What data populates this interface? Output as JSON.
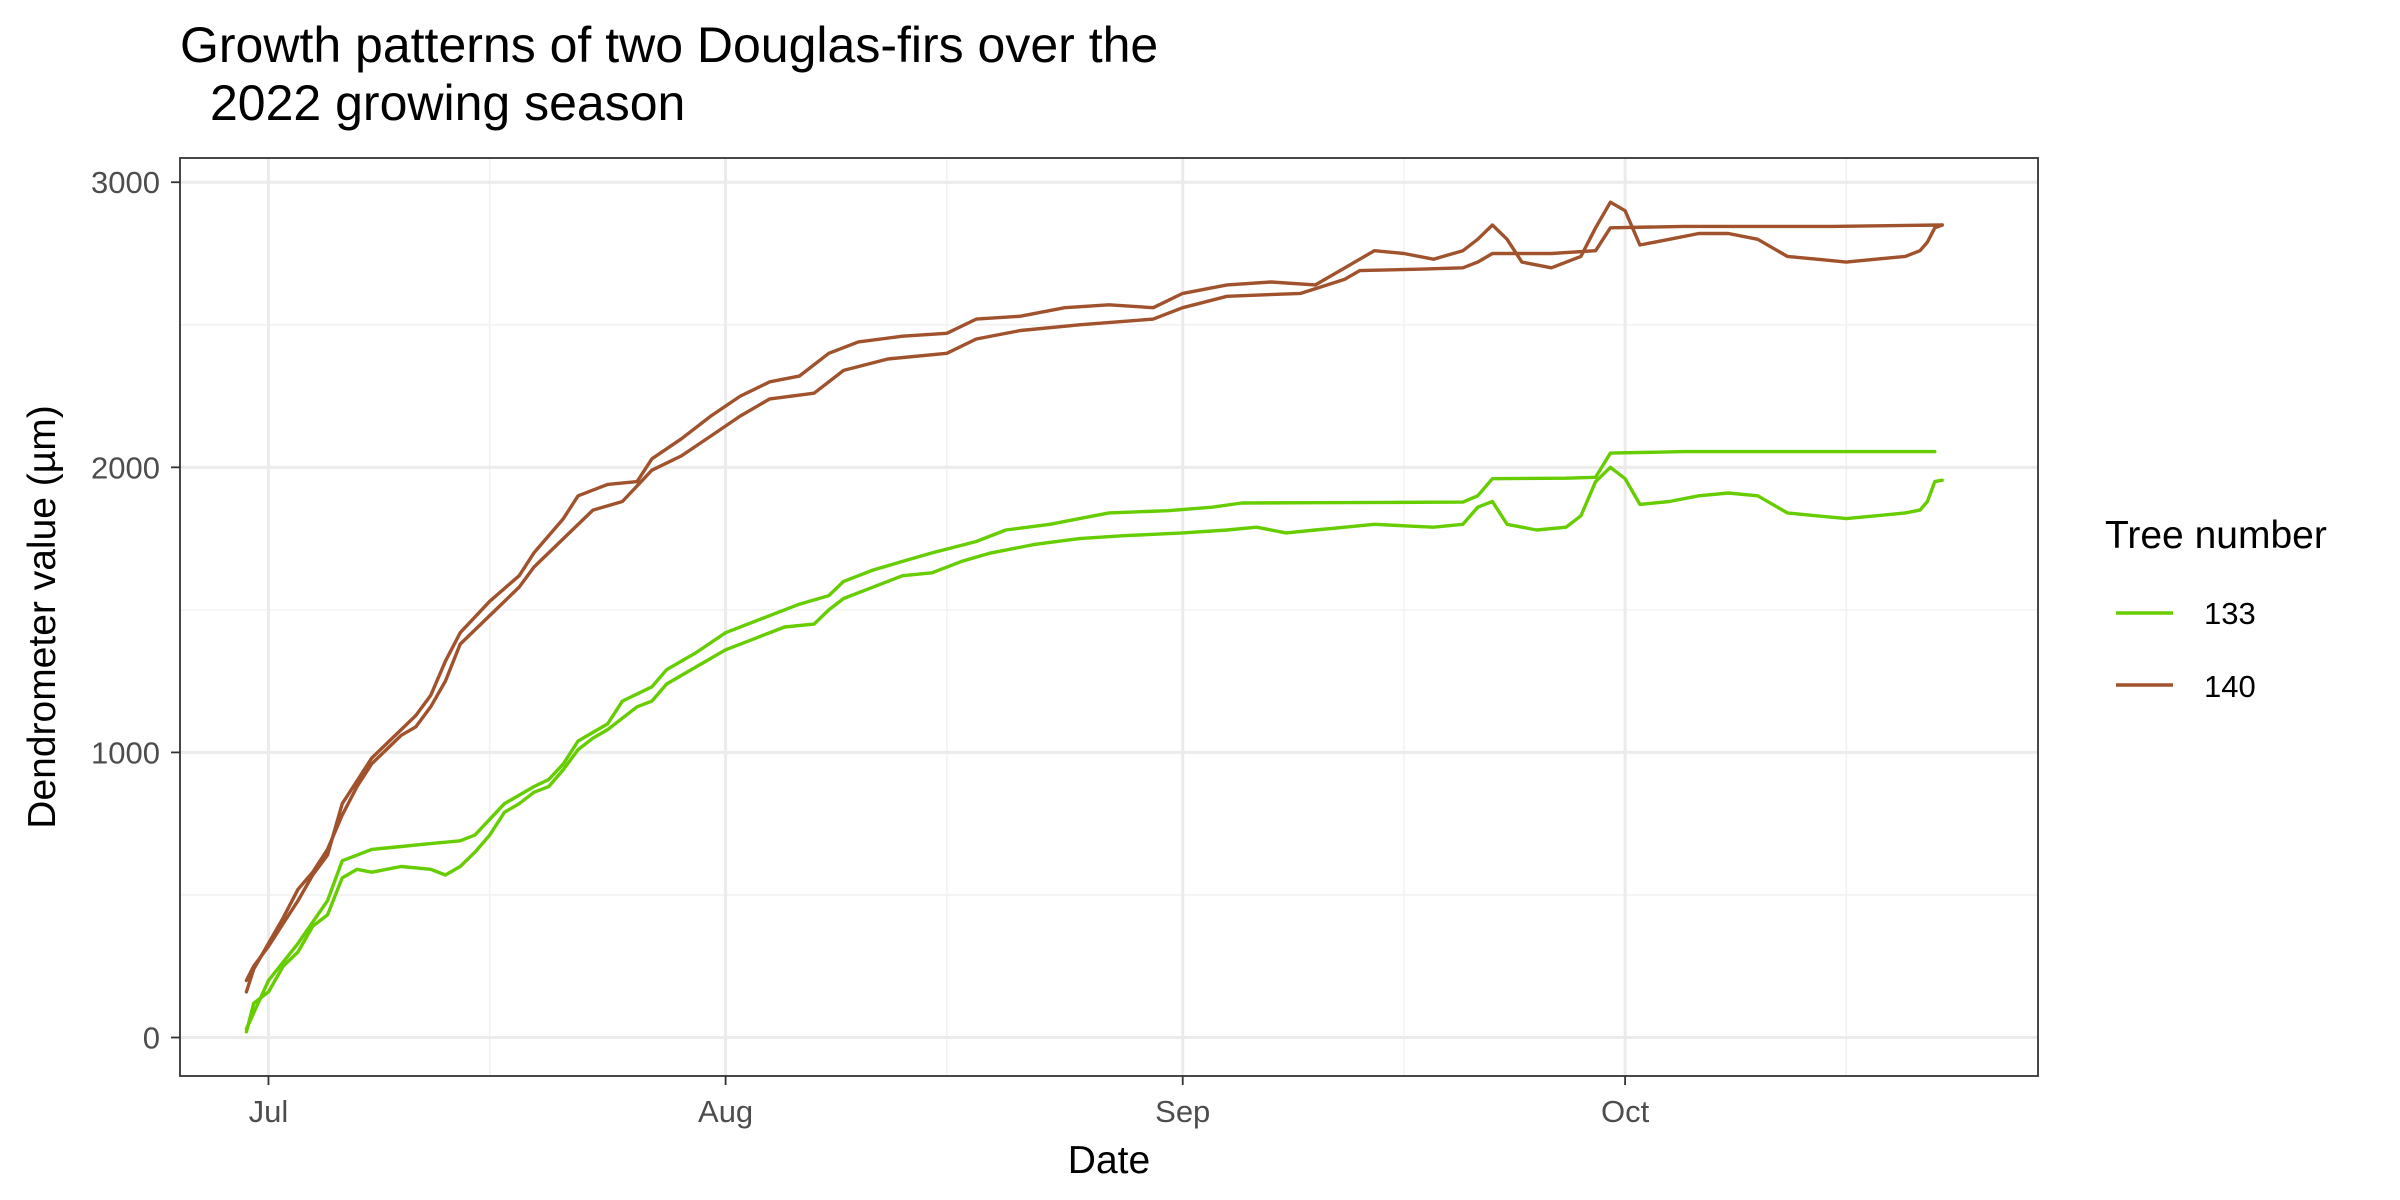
{
  "chart_data": {
    "type": "line",
    "title_lines": [
      "Growth patterns of two Douglas-firs over the",
      "2022 growing season"
    ],
    "xlabel": "Date",
    "ylabel": "Dendrometer value (µm)",
    "x_ticks": [
      {
        "date": "2022-07-01",
        "label": "Jul"
      },
      {
        "date": "2022-08-01",
        "label": "Aug"
      },
      {
        "date": "2022-09-01",
        "label": "Sep"
      },
      {
        "date": "2022-10-01",
        "label": "Oct"
      }
    ],
    "x_minor_ticks": [
      "2022-07-16",
      "2022-08-16",
      "2022-09-16",
      "2022-10-16"
    ],
    "xlim": [
      "2022-06-25",
      "2022-10-29"
    ],
    "y_ticks": [
      0,
      1000,
      2000,
      3000
    ],
    "y_minor_ticks": [
      500,
      1500,
      2500
    ],
    "ylim": [
      -135,
      3085
    ],
    "grid": true,
    "legend": {
      "title": "Tree number",
      "position": "right"
    },
    "series": [
      {
        "name": "133",
        "color": "#66CD00",
        "envelope": [
          [
            "2022-06-29T12:00",
            30
          ],
          [
            "2022-07-01",
            200
          ],
          [
            "2022-07-03",
            330
          ],
          [
            "2022-07-05",
            480
          ],
          [
            "2022-07-06",
            620
          ],
          [
            "2022-07-08",
            660
          ],
          [
            "2022-07-10",
            670
          ],
          [
            "2022-07-12",
            680
          ],
          [
            "2022-07-14",
            690
          ],
          [
            "2022-07-15",
            710
          ],
          [
            "2022-07-17",
            820
          ],
          [
            "2022-07-19",
            880
          ],
          [
            "2022-07-20",
            905
          ],
          [
            "2022-07-21",
            960
          ],
          [
            "2022-07-22",
            1040
          ],
          [
            "2022-07-24",
            1100
          ],
          [
            "2022-07-25",
            1180
          ],
          [
            "2022-07-27",
            1230
          ],
          [
            "2022-07-28",
            1290
          ],
          [
            "2022-07-30",
            1350
          ],
          [
            "2022-08-01",
            1420
          ],
          [
            "2022-08-04",
            1480
          ],
          [
            "2022-08-06",
            1520
          ],
          [
            "2022-08-08",
            1550
          ],
          [
            "2022-08-09",
            1600
          ],
          [
            "2022-08-11",
            1640
          ],
          [
            "2022-08-13",
            1670
          ],
          [
            "2022-08-15",
            1700
          ],
          [
            "2022-08-18",
            1740
          ],
          [
            "2022-08-20",
            1780
          ],
          [
            "2022-08-23",
            1800
          ],
          [
            "2022-08-25",
            1820
          ],
          [
            "2022-08-27",
            1840
          ],
          [
            "2022-08-31",
            1848
          ],
          [
            "2022-09-03",
            1860
          ],
          [
            "2022-09-05",
            1875
          ],
          [
            "2022-09-10",
            1876
          ],
          [
            "2022-09-15",
            1877
          ],
          [
            "2022-09-20",
            1878
          ],
          [
            "2022-09-21",
            1900
          ],
          [
            "2022-09-22",
            1960
          ],
          [
            "2022-09-27",
            1962
          ],
          [
            "2022-09-29",
            1965
          ],
          [
            "2022-09-30",
            2050
          ],
          [
            "2022-10-05",
            2055
          ],
          [
            "2022-10-15",
            2055
          ],
          [
            "2022-10-22",
            2055
          ]
        ],
        "measured": [
          [
            "2022-06-29T12:00",
            20
          ],
          [
            "2022-06-30",
            120
          ],
          [
            "2022-07-01",
            160
          ],
          [
            "2022-07-02",
            250
          ],
          [
            "2022-07-03",
            300
          ],
          [
            "2022-07-04",
            390
          ],
          [
            "2022-07-05",
            430
          ],
          [
            "2022-07-06",
            560
          ],
          [
            "2022-07-07",
            590
          ],
          [
            "2022-07-08",
            580
          ],
          [
            "2022-07-10",
            600
          ],
          [
            "2022-07-12",
            590
          ],
          [
            "2022-07-13",
            570
          ],
          [
            "2022-07-14",
            600
          ],
          [
            "2022-07-15",
            650
          ],
          [
            "2022-07-16",
            710
          ],
          [
            "2022-07-17",
            790
          ],
          [
            "2022-07-18",
            820
          ],
          [
            "2022-07-19",
            860
          ],
          [
            "2022-07-20",
            880
          ],
          [
            "2022-07-21",
            940
          ],
          [
            "2022-07-22",
            1010
          ],
          [
            "2022-07-23",
            1050
          ],
          [
            "2022-07-24",
            1080
          ],
          [
            "2022-07-25",
            1120
          ],
          [
            "2022-07-26",
            1160
          ],
          [
            "2022-07-27",
            1180
          ],
          [
            "2022-07-28",
            1240
          ],
          [
            "2022-07-30",
            1300
          ],
          [
            "2022-08-01",
            1360
          ],
          [
            "2022-08-03",
            1400
          ],
          [
            "2022-08-05",
            1440
          ],
          [
            "2022-08-07",
            1450
          ],
          [
            "2022-08-08",
            1500
          ],
          [
            "2022-08-09",
            1540
          ],
          [
            "2022-08-11",
            1580
          ],
          [
            "2022-08-13",
            1620
          ],
          [
            "2022-08-15",
            1630
          ],
          [
            "2022-08-17",
            1670
          ],
          [
            "2022-08-19",
            1700
          ],
          [
            "2022-08-22",
            1730
          ],
          [
            "2022-08-25",
            1750
          ],
          [
            "2022-08-28",
            1760
          ],
          [
            "2022-09-01",
            1770
          ],
          [
            "2022-09-04",
            1780
          ],
          [
            "2022-09-06",
            1790
          ],
          [
            "2022-09-08",
            1770
          ],
          [
            "2022-09-10",
            1780
          ],
          [
            "2022-09-12",
            1790
          ],
          [
            "2022-09-14",
            1800
          ],
          [
            "2022-09-16",
            1795
          ],
          [
            "2022-09-18",
            1790
          ],
          [
            "2022-09-20",
            1800
          ],
          [
            "2022-09-21",
            1860
          ],
          [
            "2022-09-22",
            1880
          ],
          [
            "2022-09-23",
            1800
          ],
          [
            "2022-09-25",
            1780
          ],
          [
            "2022-09-27",
            1790
          ],
          [
            "2022-09-28",
            1830
          ],
          [
            "2022-09-29",
            1950
          ],
          [
            "2022-09-30",
            2000
          ],
          [
            "2022-10-01",
            1960
          ],
          [
            "2022-10-02",
            1870
          ],
          [
            "2022-10-04",
            1880
          ],
          [
            "2022-10-06",
            1900
          ],
          [
            "2022-10-08",
            1910
          ],
          [
            "2022-10-10",
            1900
          ],
          [
            "2022-10-12",
            1840
          ],
          [
            "2022-10-14",
            1830
          ],
          [
            "2022-10-16",
            1820
          ],
          [
            "2022-10-18",
            1830
          ],
          [
            "2022-10-20",
            1840
          ],
          [
            "2022-10-21",
            1850
          ],
          [
            "2022-10-21T12:00",
            1880
          ],
          [
            "2022-10-22",
            1950
          ],
          [
            "2022-10-22T12:00",
            1955
          ]
        ]
      },
      {
        "name": "140",
        "color": "#A0522D",
        "envelope": [
          [
            "2022-06-29T12:00",
            160
          ],
          [
            "2022-06-30",
            240
          ],
          [
            "2022-07-01",
            330
          ],
          [
            "2022-07-02",
            420
          ],
          [
            "2022-07-03",
            520
          ],
          [
            "2022-07-04",
            580
          ],
          [
            "2022-07-05",
            660
          ],
          [
            "2022-07-06",
            780
          ],
          [
            "2022-07-07",
            880
          ],
          [
            "2022-07-08",
            960
          ],
          [
            "2022-07-09",
            1010
          ],
          [
            "2022-07-10",
            1060
          ],
          [
            "2022-07-11",
            1090
          ],
          [
            "2022-07-12",
            1160
          ],
          [
            "2022-07-13",
            1250
          ],
          [
            "2022-07-14",
            1380
          ],
          [
            "2022-07-16",
            1480
          ],
          [
            "2022-07-18",
            1580
          ],
          [
            "2022-07-19",
            1650
          ],
          [
            "2022-07-21",
            1750
          ],
          [
            "2022-07-23",
            1850
          ],
          [
            "2022-07-25",
            1880
          ],
          [
            "2022-07-27",
            1990
          ],
          [
            "2022-07-29",
            2040
          ],
          [
            "2022-07-31",
            2110
          ],
          [
            "2022-08-02",
            2180
          ],
          [
            "2022-08-04",
            2240
          ],
          [
            "2022-08-07",
            2260
          ],
          [
            "2022-08-09",
            2340
          ],
          [
            "2022-08-12",
            2380
          ],
          [
            "2022-08-16",
            2400
          ],
          [
            "2022-08-18",
            2450
          ],
          [
            "2022-08-21",
            2480
          ],
          [
            "2022-08-25",
            2500
          ],
          [
            "2022-08-30",
            2520
          ],
          [
            "2022-09-01",
            2560
          ],
          [
            "2022-09-04",
            2600
          ],
          [
            "2022-09-09",
            2610
          ],
          [
            "2022-09-12",
            2660
          ],
          [
            "2022-09-13",
            2690
          ],
          [
            "2022-09-17",
            2695
          ],
          [
            "2022-09-20",
            2700
          ],
          [
            "2022-09-21",
            2720
          ],
          [
            "2022-09-22",
            2750
          ],
          [
            "2022-09-26",
            2750
          ],
          [
            "2022-09-29",
            2760
          ],
          [
            "2022-09-30",
            2840
          ],
          [
            "2022-10-05",
            2845
          ],
          [
            "2022-10-15",
            2845
          ],
          [
            "2022-10-22T12:00",
            2850
          ]
        ],
        "measured": [
          [
            "2022-06-29T12:00",
            200
          ],
          [
            "2022-06-30",
            250
          ],
          [
            "2022-07-01",
            320
          ],
          [
            "2022-07-02",
            400
          ],
          [
            "2022-07-03",
            480
          ],
          [
            "2022-07-04",
            570
          ],
          [
            "2022-07-05",
            640
          ],
          [
            "2022-07-06",
            820
          ],
          [
            "2022-07-07",
            900
          ],
          [
            "2022-07-08",
            980
          ],
          [
            "2022-07-09",
            1030
          ],
          [
            "2022-07-10",
            1080
          ],
          [
            "2022-07-11",
            1130
          ],
          [
            "2022-07-12",
            1200
          ],
          [
            "2022-07-13",
            1320
          ],
          [
            "2022-07-14",
            1420
          ],
          [
            "2022-07-16",
            1530
          ],
          [
            "2022-07-18",
            1620
          ],
          [
            "2022-07-19",
            1700
          ],
          [
            "2022-07-21",
            1820
          ],
          [
            "2022-07-22",
            1900
          ],
          [
            "2022-07-24",
            1940
          ],
          [
            "2022-07-26",
            1950
          ],
          [
            "2022-07-27",
            2030
          ],
          [
            "2022-07-29",
            2100
          ],
          [
            "2022-07-31",
            2180
          ],
          [
            "2022-08-02",
            2250
          ],
          [
            "2022-08-04",
            2300
          ],
          [
            "2022-08-06",
            2320
          ],
          [
            "2022-08-08",
            2400
          ],
          [
            "2022-08-10",
            2440
          ],
          [
            "2022-08-13",
            2460
          ],
          [
            "2022-08-16",
            2470
          ],
          [
            "2022-08-18",
            2520
          ],
          [
            "2022-08-21",
            2530
          ],
          [
            "2022-08-24",
            2560
          ],
          [
            "2022-08-27",
            2570
          ],
          [
            "2022-08-30",
            2560
          ],
          [
            "2022-09-01",
            2610
          ],
          [
            "2022-09-04",
            2640
          ],
          [
            "2022-09-07",
            2650
          ],
          [
            "2022-09-10",
            2640
          ],
          [
            "2022-09-12",
            2700
          ],
          [
            "2022-09-14",
            2760
          ],
          [
            "2022-09-16",
            2750
          ],
          [
            "2022-09-18",
            2730
          ],
          [
            "2022-09-20",
            2760
          ],
          [
            "2022-09-21",
            2800
          ],
          [
            "2022-09-22",
            2850
          ],
          [
            "2022-09-23",
            2800
          ],
          [
            "2022-09-24",
            2720
          ],
          [
            "2022-09-26",
            2700
          ],
          [
            "2022-09-28",
            2740
          ],
          [
            "2022-09-29",
            2840
          ],
          [
            "2022-09-30",
            2930
          ],
          [
            "2022-10-01",
            2900
          ],
          [
            "2022-10-02",
            2780
          ],
          [
            "2022-10-04",
            2800
          ],
          [
            "2022-10-06",
            2820
          ],
          [
            "2022-10-08",
            2820
          ],
          [
            "2022-10-10",
            2800
          ],
          [
            "2022-10-12",
            2740
          ],
          [
            "2022-10-14",
            2730
          ],
          [
            "2022-10-16",
            2720
          ],
          [
            "2022-10-18",
            2730
          ],
          [
            "2022-10-20",
            2740
          ],
          [
            "2022-10-21",
            2760
          ],
          [
            "2022-10-21T12:00",
            2790
          ],
          [
            "2022-10-22",
            2840
          ],
          [
            "2022-10-22T12:00",
            2850
          ]
        ]
      }
    ]
  }
}
